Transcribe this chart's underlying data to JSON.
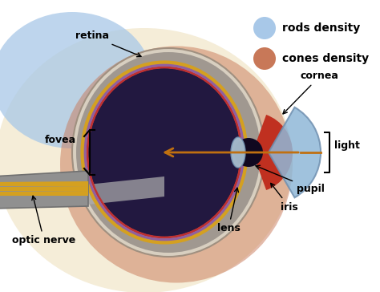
{
  "bg_color": "#ffffff",
  "fat_tissue_color": "#f5edd8",
  "rods_blob_color": "#a8c8e8",
  "cones_blob_color": "#c87858",
  "eye_sclera_color": "#d8cfc0",
  "eye_gray_color": "#a09890",
  "eye_vitreous_color": "#221840",
  "retina_yellow_color": "#d4a020",
  "retina_purple_color": "#9060a0",
  "retina_red_color": "#c03030",
  "cornea_color": "#90b8d8",
  "iris_color": "#c03020",
  "pupil_color": "#100820",
  "lens_color": "#90a8c0",
  "optic_nerve_gray": "#909090",
  "optic_nerve_yellow": "#d4a020",
  "light_arrow_color": "#c07010",
  "label_fontsize": 9,
  "legend_fontsize": 10,
  "labels": {
    "retina": "retina",
    "fovea": "fovea",
    "optic_nerve": "optic nerve",
    "cornea": "cornea",
    "light": "light",
    "pupil": "pupil",
    "iris": "iris",
    "lens": "lens",
    "rods_density": "rods density",
    "cones_density": "cones density"
  }
}
